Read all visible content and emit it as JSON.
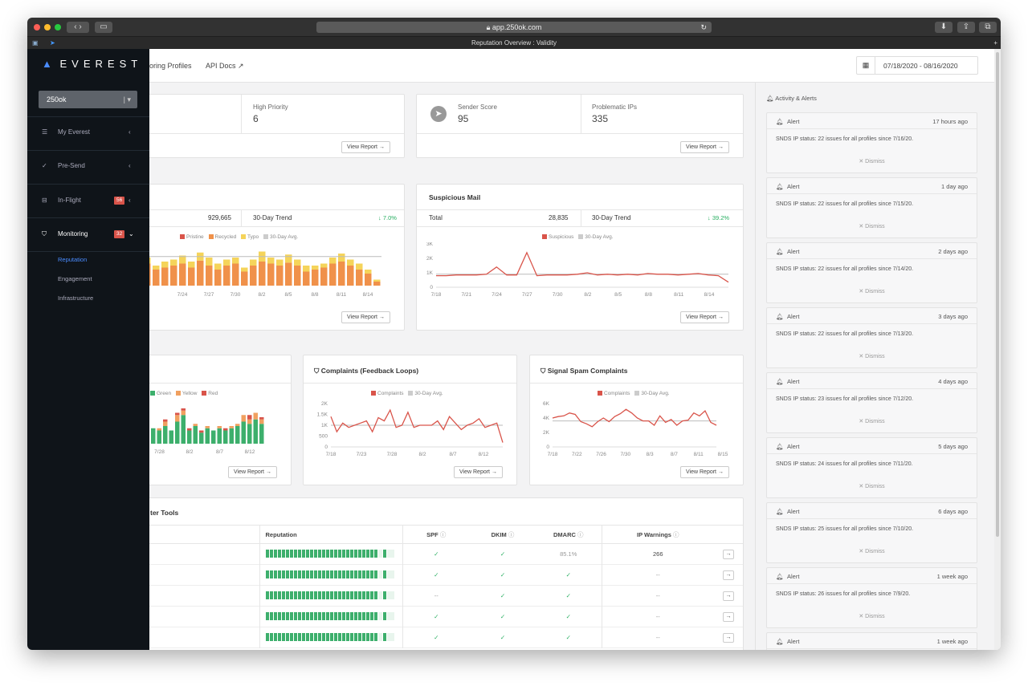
{
  "browser": {
    "url": "app.250ok.com",
    "tab_title": "Reputation Overview : Validity"
  },
  "sidebar": {
    "logo": "EVERest",
    "account": "250ok",
    "nav": [
      {
        "label": "My Everest",
        "badge": ""
      },
      {
        "label": "Pre-Send",
        "badge": ""
      },
      {
        "label": "In-Flight",
        "badge": "56"
      },
      {
        "label": "Monitoring",
        "badge": "32"
      }
    ],
    "sub": [
      "Reputation",
      "Engagement",
      "Infrastructure"
    ]
  },
  "topbar": {
    "nav1": "oring Profiles",
    "nav2": "API Docs",
    "date_range": "07/18/2020 - 08/16/2020"
  },
  "stats": {
    "high_priority_label": "High Priority",
    "high_priority_value": "6",
    "sender_score_label": "Sender Score",
    "sender_score_value": "95",
    "problematic_label": "Problematic IPs",
    "problematic_value": "335",
    "view_report": "View Report →"
  },
  "inbox_card": {
    "total": "929,665",
    "trend_label": "30-Day Trend",
    "trend_value": "↓ 7.0%",
    "legend": [
      "Pristine",
      "Recycled",
      "Typo",
      "30-Day Avg."
    ]
  },
  "suspicious_card": {
    "title": "Suspicious Mail",
    "total_label": "Total",
    "total": "28,835",
    "trend_label": "30-Day Trend",
    "trend_value": "↓ 39.2%",
    "legend": [
      "Suspicious",
      "30-Day Avg."
    ]
  },
  "left_bottom": {
    "legend": [
      "Green",
      "Yellow",
      "Red"
    ]
  },
  "complaints": {
    "title": "Complaints (Feedback Loops)",
    "legend": [
      "Complaints",
      "30-Day Avg."
    ]
  },
  "signal": {
    "title": "Signal Spam Complaints",
    "legend": [
      "Complaints",
      "30-Day Avg."
    ]
  },
  "tools": {
    "title": "ter Tools",
    "headers": [
      "Reputation",
      "SPF",
      "DKIM",
      "DMARC",
      "IP Warnings"
    ],
    "rows": [
      {
        "spf": "✓",
        "dkim": "✓",
        "dmarc": "85.1%",
        "ipw": "266"
      },
      {
        "spf": "✓",
        "dkim": "✓",
        "dmarc": "✓",
        "ipw": "--"
      },
      {
        "spf": "--",
        "dkim": "✓",
        "dmarc": "✓",
        "ipw": "--"
      },
      {
        "spf": "✓",
        "dkim": "✓",
        "dmarc": "✓",
        "ipw": "--"
      },
      {
        "spf": "✓",
        "dkim": "✓",
        "dmarc": "✓",
        "ipw": "--"
      }
    ]
  },
  "activity": {
    "title": "Activity & Alerts",
    "alert_label": "Alert",
    "dismiss": "✕ Dismiss",
    "alerts": [
      {
        "time": "17 hours ago",
        "msg": "SNDS IP status: 22 issues for all profiles since 7/16/20."
      },
      {
        "time": "1 day ago",
        "msg": "SNDS IP status: 22 issues for all profiles since 7/15/20."
      },
      {
        "time": "2 days ago",
        "msg": "SNDS IP status: 22 issues for all profiles since 7/14/20."
      },
      {
        "time": "3 days ago",
        "msg": "SNDS IP status: 22 issues for all profiles since 7/13/20."
      },
      {
        "time": "4 days ago",
        "msg": "SNDS IP status: 23 issues for all profiles since 7/12/20."
      },
      {
        "time": "5 days ago",
        "msg": "SNDS IP status: 24 issues for all profiles since 7/11/20."
      },
      {
        "time": "6 days ago",
        "msg": "SNDS IP status: 25 issues for all profiles since 7/10/20."
      },
      {
        "time": "1 week ago",
        "msg": "SNDS IP status: 26 issues for all profiles since 7/9/20."
      },
      {
        "time": "1 week ago",
        "msg": ""
      }
    ]
  },
  "chart_data": [
    {
      "type": "bar",
      "name": "inbox",
      "categories": [
        "7/18",
        "7/19",
        "7/20",
        "7/21",
        "7/22",
        "7/23",
        "7/24",
        "7/25",
        "7/26",
        "7/27",
        "7/28",
        "7/29",
        "7/30",
        "7/31",
        "8/1",
        "8/2",
        "8/3",
        "8/4",
        "8/5",
        "8/6",
        "8/7",
        "8/8",
        "8/9",
        "8/10",
        "8/11",
        "8/12",
        "8/13",
        "8/14",
        "8/15"
      ],
      "x_ticks": [
        "7/24",
        "7/27",
        "7/30",
        "8/2",
        "8/5",
        "8/8",
        "8/11",
        "8/14"
      ],
      "series": [
        {
          "name": "Recycled",
          "values": [
            20,
            28,
            22,
            16,
            18,
            20,
            22,
            18,
            25,
            20,
            16,
            20,
            22,
            14,
            20,
            24,
            22,
            20,
            23,
            20,
            14,
            16,
            18,
            22,
            24,
            20,
            16,
            12,
            4
          ]
        },
        {
          "name": "Typo",
          "values": [
            6,
            8,
            6,
            4,
            6,
            6,
            8,
            6,
            8,
            8,
            6,
            6,
            6,
            4,
            6,
            10,
            6,
            6,
            8,
            6,
            6,
            4,
            4,
            6,
            8,
            6,
            6,
            4,
            2
          ]
        }
      ],
      "avg": 29,
      "colors": {
        "Pristine": "#d9544a",
        "Recycled": "#f0914a",
        "Typo": "#f5d45a",
        "30-Day Avg.": "#bbbbbb"
      }
    },
    {
      "type": "line",
      "name": "suspicious",
      "x": [
        "7/18",
        "7/19",
        "7/20",
        "7/21",
        "7/22",
        "7/23",
        "7/24",
        "7/25",
        "7/26",
        "7/27",
        "7/28",
        "7/29",
        "7/30",
        "7/31",
        "8/1",
        "8/2",
        "8/3",
        "8/4",
        "8/5",
        "8/6",
        "8/7",
        "8/8",
        "8/9",
        "8/10",
        "8/11",
        "8/12",
        "8/13",
        "8/14",
        "8/15",
        "8/16"
      ],
      "x_ticks": [
        "7/18",
        "7/21",
        "7/24",
        "7/27",
        "7/30",
        "8/2",
        "8/5",
        "8/8",
        "8/11",
        "8/14"
      ],
      "y_ticks": [
        "0",
        "1K",
        "2K",
        "3K"
      ],
      "ylim": [
        0,
        3000
      ],
      "values": [
        800,
        800,
        850,
        850,
        850,
        900,
        1400,
        850,
        850,
        2400,
        800,
        850,
        850,
        850,
        900,
        1000,
        850,
        900,
        850,
        900,
        850,
        950,
        900,
        900,
        850,
        900,
        950,
        850,
        800,
        350
      ],
      "avg": 900
    },
    {
      "type": "bar",
      "name": "signals",
      "categories": [
        "7/25",
        "7/26",
        "7/27",
        "7/28",
        "7/29",
        "7/30",
        "7/31",
        "8/1",
        "8/2",
        "8/3",
        "8/4",
        "8/5",
        "8/6",
        "8/7",
        "8/8",
        "8/9",
        "8/10",
        "8/11",
        "8/12",
        "8/13",
        "8/14"
      ],
      "x_ticks": [
        "7/28",
        "8/2",
        "8/7",
        "8/12"
      ],
      "series": [
        {
          "name": "Green",
          "values": [
            10,
            8,
            14,
            12,
            16,
            12,
            20,
            26,
            12,
            16,
            10,
            14,
            12,
            14,
            12,
            14,
            16,
            20,
            18,
            22,
            18
          ]
        },
        {
          "name": "Yellow",
          "values": [
            2,
            0,
            0,
            2,
            4,
            0,
            6,
            4,
            0,
            2,
            0,
            2,
            0,
            2,
            0,
            2,
            2,
            6,
            4,
            6,
            4
          ]
        },
        {
          "name": "Red",
          "values": [
            0,
            2,
            0,
            0,
            2,
            0,
            2,
            2,
            2,
            0,
            2,
            0,
            0,
            0,
            2,
            0,
            0,
            0,
            4,
            0,
            2
          ]
        }
      ]
    },
    {
      "type": "line",
      "name": "complaints",
      "x_ticks": [
        "7/18",
        "7/23",
        "7/28",
        "8/2",
        "8/7",
        "8/12"
      ],
      "y_ticks": [
        "0",
        "500",
        "1K",
        "1.5K",
        "2K"
      ],
      "ylim": [
        0,
        2000
      ],
      "values": [
        1400,
        700,
        1100,
        900,
        1000,
        1100,
        1200,
        700,
        1350,
        1200,
        1700,
        900,
        1000,
        1600,
        900,
        1000,
        1000,
        1000,
        1200,
        800,
        1400,
        1100,
        800,
        1000,
        1100,
        1300,
        900,
        1000,
        1100,
        200
      ],
      "avg": 1000
    },
    {
      "type": "line",
      "name": "signal_spam",
      "x_ticks": [
        "7/18",
        "7/22",
        "7/26",
        "7/30",
        "8/3",
        "8/7",
        "8/11",
        "8/15"
      ],
      "y_ticks": [
        "0",
        "2K",
        "4K",
        "6K"
      ],
      "ylim": [
        0,
        6000
      ],
      "values": [
        4000,
        4200,
        4300,
        4700,
        4500,
        3500,
        3200,
        2800,
        3500,
        4000,
        3500,
        4200,
        4600,
        5200,
        4700,
        4000,
        3600,
        3600,
        3000,
        4300,
        3400,
        3800,
        3000,
        3600,
        3700,
        4700,
        4300,
        5000,
        3400,
        3000
      ],
      "avg": 3600
    }
  ]
}
